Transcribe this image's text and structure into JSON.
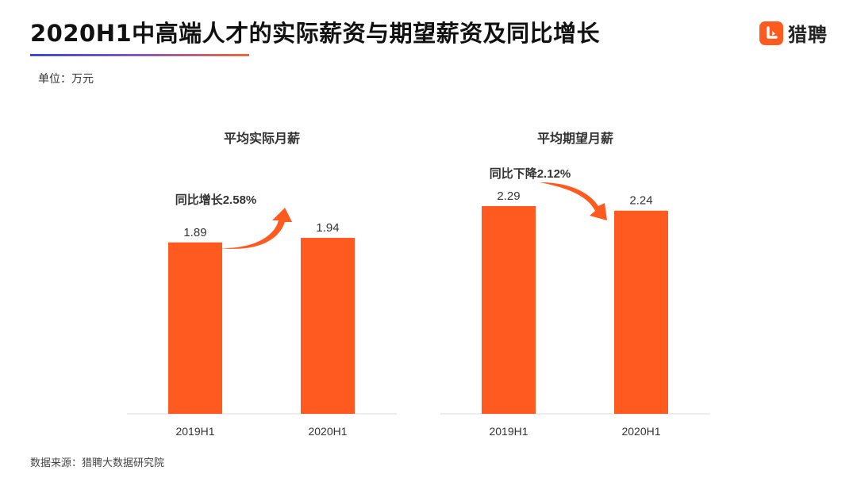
{
  "header": {
    "title": "2020H1中高端人才的实际薪资与期望薪资及同比增长",
    "unit": "单位：万元",
    "logo_text": "猎聘",
    "logo_icon": "liepin-logo-icon"
  },
  "footer": {
    "source": "数据来源：猎聘大数据研究院"
  },
  "colors": {
    "bar": "#ff5a1f",
    "arrow": "#ff5a1f",
    "text": "#333333"
  },
  "chart_data": [
    {
      "type": "bar",
      "title": "平均实际月薪",
      "categories": [
        "2019H1",
        "2020H1"
      ],
      "values": [
        1.89,
        1.94
      ],
      "value_labels": [
        "1.89",
        "1.94"
      ],
      "annotation": "同比增长2.58%",
      "trend": "up",
      "ylim": [
        0,
        2.29
      ],
      "grid": false,
      "legend": "none"
    },
    {
      "type": "bar",
      "title": "平均期望月薪",
      "categories": [
        "2019H1",
        "2020H1"
      ],
      "values": [
        2.29,
        2.24
      ],
      "value_labels": [
        "2.29",
        "2.24"
      ],
      "annotation": "同比下降2.12%",
      "trend": "down",
      "ylim": [
        0,
        2.29
      ],
      "grid": false,
      "legend": "none"
    }
  ]
}
